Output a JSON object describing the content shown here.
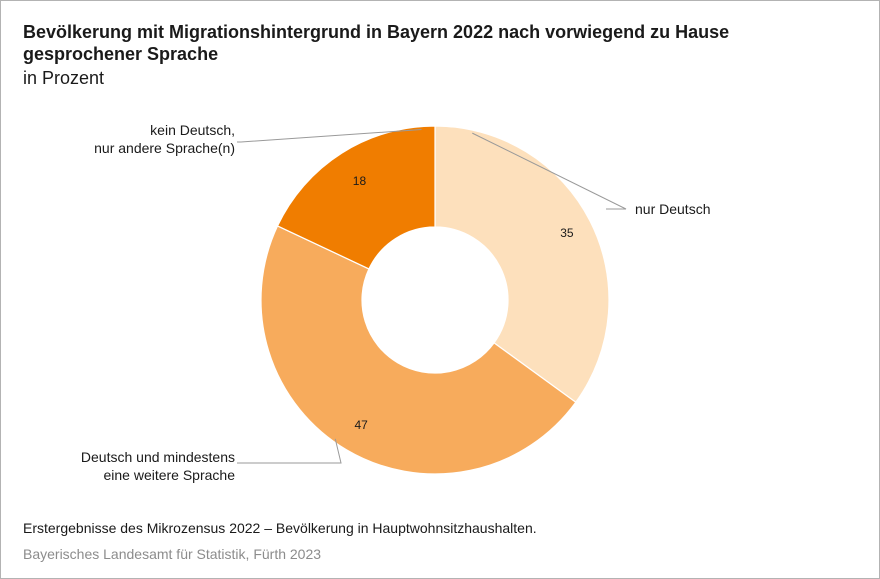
{
  "title": "Bevölkerung mit Migrationshintergrund in Bayern 2022 nach vorwiegend zu Hause gesprochener Sprache",
  "subtitle": "in Prozent",
  "footnote": "Erstergebnisse des Mikrozensus 2022 – Bevölkerung in Hauptwohnsitzhaushalten.",
  "source": "Bayerisches Landesamt für Statistik, Fürth 2023",
  "chart_data": {
    "type": "pie",
    "donut": true,
    "unit": "%",
    "categories": [
      "nur Deutsch",
      "Deutsch und mindestens eine weitere Sprache",
      "kein Deutsch, nur andere Sprache(n)"
    ],
    "label_lines": [
      [
        "nur Deutsch"
      ],
      [
        "Deutsch und mindestens",
        "eine weitere Sprache"
      ],
      [
        "kein Deutsch,",
        "nur andere Sprache(n)"
      ]
    ],
    "values": [
      35,
      47,
      18
    ],
    "colors": [
      "#fde0bc",
      "#f7ab5c",
      "#f07d00"
    ],
    "start_angle": "12 o'clock",
    "direction": "clockwise"
  }
}
